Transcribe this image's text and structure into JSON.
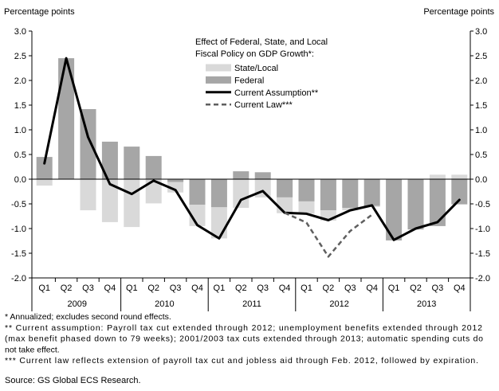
{
  "chart_data": {
    "type": "bar",
    "stacked": true,
    "title_lines": [
      "Effect of Federal, State, and Local",
      "Fiscal Policy on GDP Growth*:"
    ],
    "ylabel": "Percentage points",
    "ylabel_right": "Percentage points",
    "xlabel": "",
    "ylim": [
      -2.0,
      3.0
    ],
    "yticks": [
      "3.0",
      "2.5",
      "2.0",
      "1.5",
      "1.0",
      "0.5",
      "0.0",
      "-0.5",
      "-1.0",
      "-1.5",
      "-2.0"
    ],
    "quarters": [
      "Q1",
      "Q2",
      "Q3",
      "Q4",
      "Q1",
      "Q2",
      "Q3",
      "Q4",
      "Q1",
      "Q2",
      "Q3",
      "Q4",
      "Q1",
      "Q2",
      "Q3",
      "Q4",
      "Q1",
      "Q2",
      "Q3",
      "Q4"
    ],
    "years": [
      "2009",
      "2010",
      "2011",
      "2012",
      "2013"
    ],
    "grid": false,
    "legend_position": "top-center",
    "series": [
      {
        "name": "State/Local",
        "kind": "bar",
        "color": "#d9d9d9",
        "values": [
          -0.13,
          0.0,
          -0.63,
          -0.87,
          -0.97,
          -0.49,
          -0.21,
          -0.43,
          -0.63,
          -0.58,
          -0.37,
          -0.32,
          -0.25,
          -0.21,
          -0.05,
          -0.02,
          0.0,
          0.0,
          0.09,
          0.09
        ]
      },
      {
        "name": "Federal",
        "kind": "bar",
        "color": "#a6a6a6",
        "values": [
          0.45,
          2.45,
          1.42,
          0.76,
          0.66,
          0.47,
          -0.06,
          -0.52,
          -0.57,
          0.16,
          0.14,
          -0.37,
          -0.45,
          -0.63,
          -0.58,
          -0.54,
          -1.24,
          -1.02,
          -0.95,
          -0.51
        ]
      },
      {
        "name": "Current Assumption**",
        "kind": "line",
        "dash": "solid",
        "color": "#000000",
        "values": [
          0.32,
          2.45,
          0.85,
          -0.1,
          -0.3,
          -0.03,
          -0.22,
          -0.93,
          -1.2,
          -0.42,
          -0.24,
          -0.68,
          -0.7,
          -0.83,
          -0.63,
          -0.53,
          -1.23,
          -1.0,
          -0.87,
          -0.42
        ]
      },
      {
        "name": "Current Law***",
        "kind": "line",
        "dash": "dashed",
        "color": "#5f5f5f",
        "values": [
          null,
          null,
          null,
          null,
          null,
          null,
          null,
          null,
          null,
          null,
          null,
          -0.68,
          -0.88,
          -1.57,
          -1.05,
          -0.72,
          null,
          null,
          null,
          null
        ]
      }
    ],
    "notes": [
      "* Annualized; excludes second round effects.",
      "** Current assumption: Payroll tax cut extended through 2012; unemployment benefits extended through 2012",
      "(max benefit phased down to 79 weeks); 2001/2003 tax cuts extended through 2013; automatic spending cuts do",
      "not take effect.",
      "*** Current law reflects extension of payroll tax cut and jobless aid through Feb. 2012, followed by expiration."
    ],
    "source": "Source: GS Global ECS Research."
  }
}
